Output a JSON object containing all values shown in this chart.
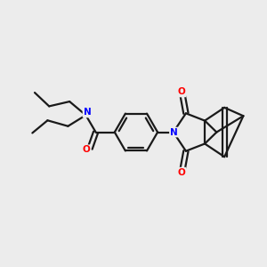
{
  "background_color": "#ececec",
  "bond_color": "#1a1a1a",
  "nitrogen_color": "#0000ff",
  "oxygen_color": "#ff0000",
  "line_width": 1.6,
  "fig_width": 3.0,
  "fig_height": 3.0,
  "dpi": 100,
  "xlim": [
    0,
    10
  ],
  "ylim": [
    0,
    10
  ]
}
